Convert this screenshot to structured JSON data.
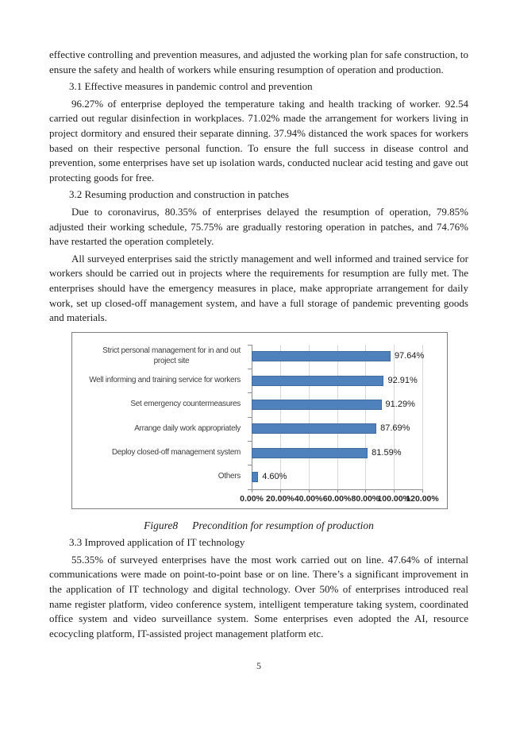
{
  "doc": {
    "paragraphs": {
      "intro_continuation": "effective controlling and prevention measures, and adjusted the working plan for safe construction, to ensure the safety and health of workers while ensuring resumption of operation and production.",
      "s31": "96.27% of enterprise deployed the temperature taking and health tracking of worker. 92.54 carried out regular disinfection in workplaces. 71.02% made the arrangement for workers living in project dormitory and ensured their separate dinning. 37.94% distanced the work spaces for workers based on their respective personal function. To ensure the full success in disease control and prevention, some enterprises have set up isolation wards, conducted nuclear acid testing and gave out protecting goods for free.",
      "s32_a": "Due to coronavirus, 80.35% of enterprises delayed the resumption of operation, 79.85% adjusted their working schedule, 75.75% are gradually restoring operation in patches, and 74.76% have restarted the operation completely.",
      "s32_b": "All surveyed enterprises said the strictly management and well informed and trained service for workers should be carried out in projects where the requirements for resumption are fully met. The enterprises should have the emergency measures in place, make appropriate arrangement for daily work, set up closed-off management system, and have a full storage of pandemic preventing goods and materials.",
      "s33": "55.35% of surveyed enterprises have the most work carried out on line. 47.64% of internal communications were made on point-to-point base or on line. There’s a significant improvement in the application of IT technology and digital technology. Over 50% of enterprises introduced real name register platform, video conference system, intelligent temperature taking system, coordinated office system and video surveillance system. Some enterprises even adopted the AI, resource ecocycling platform, IT-assisted project management platform etc."
    },
    "headings": {
      "s31": "3.1 Effective measures in pandemic control and prevention",
      "s32": "3.2 Resuming production and construction in patches",
      "s33": "3.3 Improved application of IT technology"
    },
    "figure": {
      "caption_label": "Figure8",
      "caption_text": "Precondition for resumption of production"
    },
    "page_number": "5"
  },
  "chart_data": {
    "type": "bar",
    "orientation": "horizontal",
    "title": "",
    "categories": [
      "Strict personal management for in and out\nproject site",
      "Well informing and training service for workers",
      "Set emergency countermeasures",
      "Arrange daily work appropriately",
      "Deploy closed-off management system",
      "Others"
    ],
    "values": [
      97.64,
      92.91,
      91.29,
      87.69,
      81.59,
      4.6
    ],
    "value_labels": [
      "97.64%",
      "92.91%",
      "91.29%",
      "87.69%",
      "81.59%",
      "4.60%"
    ],
    "x_tick_labels": [
      "0.00%",
      "20.00%",
      "40.00%",
      "60.00%",
      "80.00%",
      "100.00%",
      "120.00%"
    ],
    "xlim": [
      0,
      120
    ],
    "x_tick_step": 20,
    "grid": true,
    "legend": "none",
    "bar_color": "#4F81BD",
    "bar_border_color": "#41699C",
    "gridline_color": "#D8D8D8",
    "axis_color": "#8C8C8C",
    "frame_color": "#7F7F7F"
  }
}
